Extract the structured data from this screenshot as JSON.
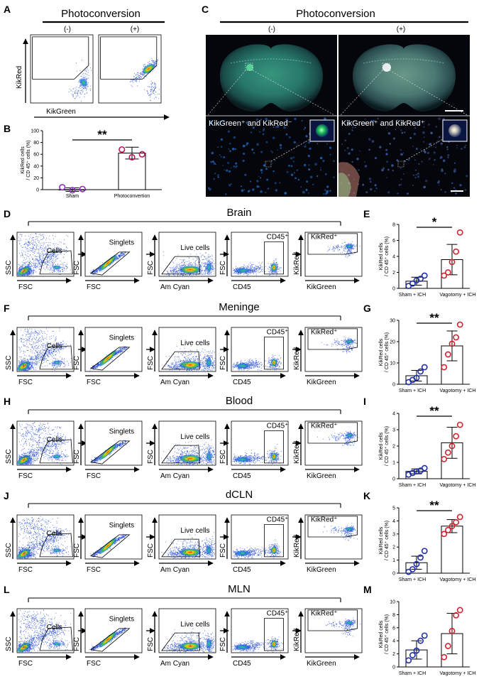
{
  "panels": {
    "A": "A",
    "B": "B",
    "C": "C",
    "D": "D",
    "E": "E",
    "F": "F",
    "G": "G",
    "H": "H",
    "I": "I",
    "J": "J",
    "K": "K",
    "L": "L",
    "M": "M"
  },
  "colors": {
    "sham": "#1f2fa8",
    "treated": "#d4232f",
    "sham_B": "#8a2bbf",
    "treated_B": "#c0135a"
  },
  "photoconversion": {
    "title": "Photoconversion",
    "neg": "(-)",
    "pos": "(+)",
    "kikred_axis": "KikRed",
    "kikgreen_axis": "KikGreen",
    "label_neg": "KikGreen⁺ and KikRed⁻",
    "label_pos": "KikGreen⁺ and KikRed⁺"
  },
  "gates": {
    "cells": "Cells",
    "singlets": "Singlets",
    "live": "Live cells",
    "cd45": "CD45⁺",
    "kikred": "KikRed⁺",
    "ax_ssc": "SSC",
    "ax_fsc": "FSC",
    "ax_amcyan": "Am Cyan",
    "ax_cd45": "CD45",
    "ax_kikred": "KikRed",
    "ax_kikgreen": "KikGreen"
  },
  "rows": [
    {
      "key": "brain",
      "title": "Brain"
    },
    {
      "key": "meninge",
      "title": "Meninge"
    },
    {
      "key": "blood",
      "title": "Blood"
    },
    {
      "key": "dcln",
      "title": "dCLN"
    },
    {
      "key": "mln",
      "title": "MLN"
    }
  ],
  "chart_data": [
    {
      "panel": "B",
      "type": "bar",
      "ylabel": "KikRed cells / CD 45⁺ cells (%)",
      "categories": [
        "Sham",
        "Photoconvertion"
      ],
      "ylim": [
        0,
        100
      ],
      "yticks": [
        0,
        20,
        40,
        60,
        80,
        100
      ],
      "means": [
        0,
        62
      ],
      "sd": [
        3,
        10
      ],
      "points": [
        [
          4,
          -1,
          1
        ],
        [
          68,
          55,
          60
        ]
      ],
      "significance": "**"
    },
    {
      "panel": "E",
      "type": "bar",
      "ylabel": "KikRed cells / CD 45⁺ cells (%)",
      "categories": [
        "Sham + ICH",
        "Vagotomy + ICH"
      ],
      "ylim": [
        0,
        8
      ],
      "yticks": [
        0,
        2,
        4,
        6,
        8
      ],
      "means": [
        0.9,
        3.6
      ],
      "sd": [
        0.5,
        1.9
      ],
      "points": [
        [
          0.3,
          0.6,
          1.0,
          1.2,
          1.6
        ],
        [
          1.6,
          2.0,
          3.3,
          4.6,
          7.0
        ]
      ],
      "significance": "*"
    },
    {
      "panel": "G",
      "type": "bar",
      "ylabel": "KikRed cells / CD 45⁺ cells (%)",
      "categories": [
        "Sham + ICH",
        "Vagotomy + ICH"
      ],
      "ylim": [
        0,
        30
      ],
      "yticks": [
        0,
        10,
        20,
        30
      ],
      "means": [
        4,
        18
      ],
      "sd": [
        2.5,
        7
      ],
      "points": [
        [
          1,
          2,
          3,
          6,
          8
        ],
        [
          8,
          14,
          19,
          22,
          28
        ]
      ],
      "significance": "**"
    },
    {
      "panel": "I",
      "type": "bar",
      "ylabel": "KikRed cells / CD 45⁺ cells (%)",
      "categories": [
        "Sham + ICH",
        "Vagotomy + ICH"
      ],
      "ylim": [
        0,
        4
      ],
      "yticks": [
        0,
        1,
        2,
        3,
        4
      ],
      "means": [
        0.45,
        2.2
      ],
      "sd": [
        0.15,
        0.95
      ],
      "points": [
        [
          0.25,
          0.35,
          0.45,
          0.5,
          0.65
        ],
        [
          1.2,
          1.6,
          2.0,
          2.6,
          3.3
        ]
      ],
      "significance": "**"
    },
    {
      "panel": "K",
      "type": "bar",
      "ylabel": "KikRed cells / CD 45⁺ cells (%)",
      "categories": [
        "Sham + ICH",
        "Vagotomy + ICH"
      ],
      "ylim": [
        0,
        5
      ],
      "yticks": [
        0,
        1,
        2,
        3,
        4,
        5
      ],
      "means": [
        0.8,
        3.6
      ],
      "sd": [
        0.5,
        0.5
      ],
      "points": [
        [
          0.1,
          0.3,
          0.7,
          1.2,
          1.7
        ],
        [
          3.0,
          3.3,
          3.6,
          3.9,
          4.3
        ]
      ],
      "significance": "**"
    },
    {
      "panel": "M",
      "type": "bar",
      "ylabel": "KikRed cells / CD 45⁺ cells (%)",
      "categories": [
        "Sham + ICH",
        "Vagotomy + ICH"
      ],
      "ylim": [
        0,
        10
      ],
      "yticks": [
        0,
        2,
        4,
        6,
        8,
        10
      ],
      "means": [
        2.6,
        5.1
      ],
      "sd": [
        1.4,
        3.1
      ],
      "points": [
        [
          1.0,
          1.8,
          2.5,
          4.0,
          4.8
        ],
        [
          1.5,
          3.2,
          5.5,
          7.9,
          8.7
        ]
      ],
      "significance": ""
    }
  ]
}
